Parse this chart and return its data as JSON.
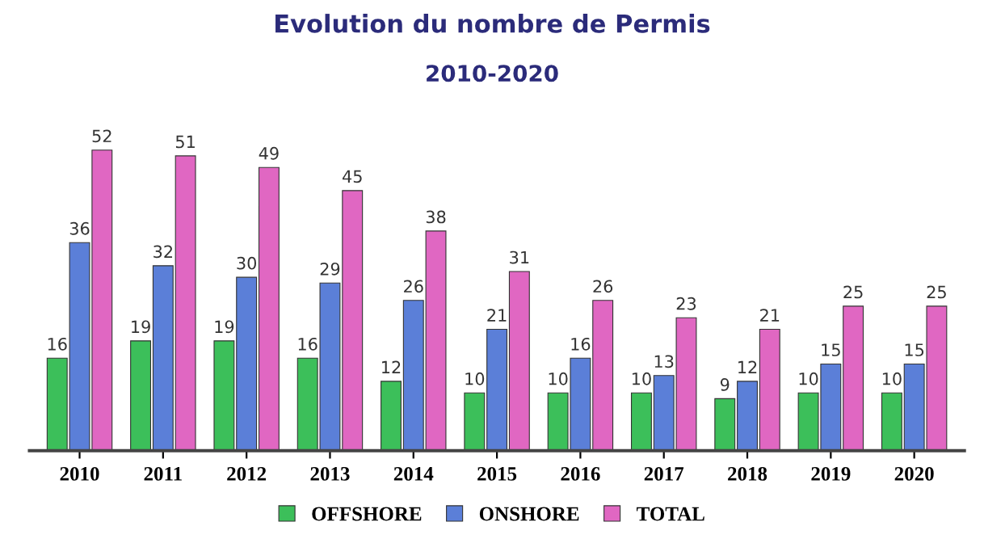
{
  "chart_data": {
    "type": "bar",
    "title": "Evolution du nombre de Permis",
    "subtitle": "2010-2020",
    "categories": [
      "2010",
      "2011",
      "2012",
      "2013",
      "2014",
      "2015",
      "2016",
      "2017",
      "2018",
      "2019",
      "2020"
    ],
    "series": [
      {
        "name": "OFFSHORE",
        "color": "#3cbf5a",
        "values": [
          16,
          19,
          19,
          16,
          12,
          10,
          10,
          10,
          9,
          10,
          10
        ]
      },
      {
        "name": "ONSHORE",
        "color": "#5b7fd8",
        "values": [
          36,
          32,
          30,
          29,
          26,
          21,
          16,
          13,
          12,
          15,
          15
        ]
      },
      {
        "name": "TOTAL",
        "color": "#e067c2",
        "values": [
          52,
          51,
          49,
          45,
          38,
          31,
          26,
          23,
          21,
          25,
          25
        ]
      }
    ],
    "data_labels": true,
    "legend": "bottom",
    "grid": false
  }
}
